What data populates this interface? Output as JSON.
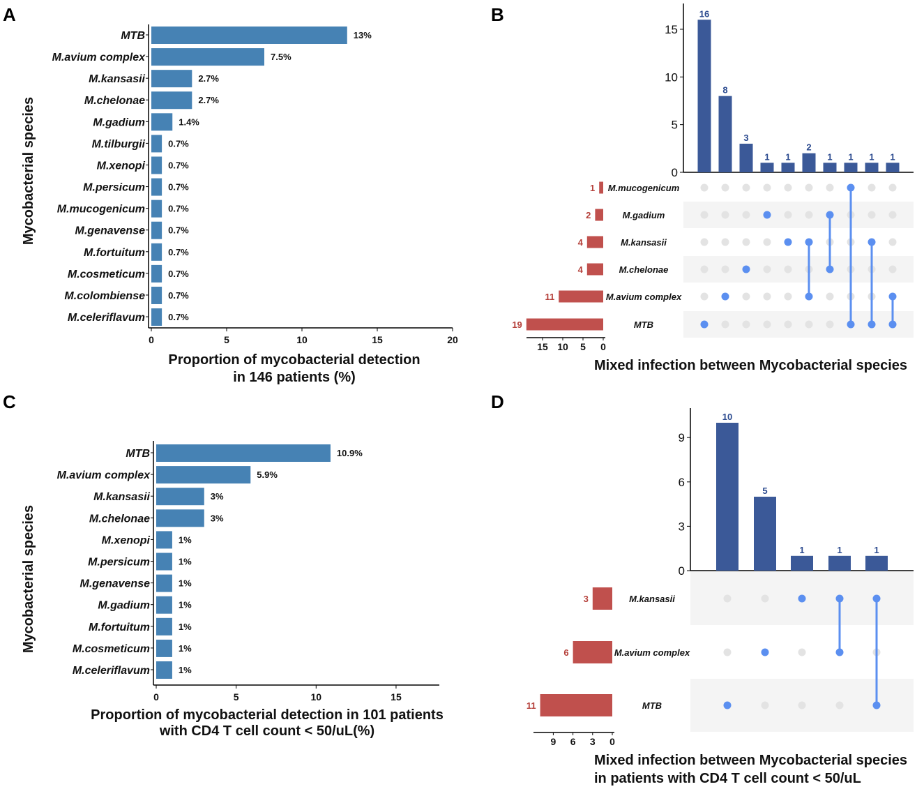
{
  "colors": {
    "bar": "#4682B4",
    "upset_bar": "#3B5998",
    "set_bar": "#C0504D",
    "dot_on": "#5B8FF0",
    "dot_off": "#E3E3E3",
    "band": "#F4F4F4"
  },
  "chart_data": [
    {
      "panel": "A",
      "type": "bar",
      "orientation": "horizontal",
      "categories": [
        "MTB",
        "M.avium complex",
        "M.kansasii",
        "M.chelonae",
        "M.gadium",
        "M.tilburgii",
        "M.xenopi",
        "M.persicum",
        "M.mucogenicum",
        "M.genavense",
        "M.fortuitum",
        "M.cosmeticum",
        "M.colombiense",
        "M.celeriflavum"
      ],
      "values": [
        13,
        7.5,
        2.7,
        2.7,
        1.4,
        0.7,
        0.7,
        0.7,
        0.7,
        0.7,
        0.7,
        0.7,
        0.7,
        0.7
      ],
      "labels": [
        "13%",
        "7.5%",
        "2.7%",
        "2.7%",
        "1.4%",
        "0.7%",
        "0.7%",
        "0.7%",
        "0.7%",
        "0.7%",
        "0.7%",
        "0.7%",
        "0.7%",
        "0.7%"
      ],
      "xticks": [
        "0",
        "5",
        "10",
        "15",
        "20"
      ],
      "xlim": [
        0,
        20
      ],
      "xlabel": [
        "Proportion of mycobacterial detection",
        "in 146 patients (%)"
      ],
      "ylabel": "Mycobacterial species"
    },
    {
      "panel": "B",
      "type": "upset",
      "intersection_sizes": [
        16,
        8,
        3,
        1,
        1,
        2,
        1,
        1,
        1,
        1
      ],
      "sets": [
        "M.mucogenicum",
        "M.gadium",
        "M.kansasii",
        "M.chelonae",
        "M.avium complex",
        "MTB"
      ],
      "set_sizes": [
        1,
        2,
        4,
        4,
        11,
        19
      ],
      "intersections": [
        [
          5
        ],
        [
          4
        ],
        [
          3
        ],
        [
          1
        ],
        [
          2
        ],
        [
          2,
          4
        ],
        [
          1,
          3
        ],
        [
          0,
          5
        ],
        [
          2,
          5
        ],
        [
          4,
          5
        ]
      ],
      "yticks": [
        "0",
        "5",
        "10",
        "15"
      ],
      "ylim": [
        0,
        17
      ],
      "set_ticks": [
        "15",
        "10",
        "5",
        "0"
      ],
      "xlabel": [
        "Mixed infection between Mycobacterial species"
      ]
    },
    {
      "panel": "C",
      "type": "bar",
      "orientation": "horizontal",
      "categories": [
        "MTB",
        "M.avium complex",
        "M.kansasii",
        "M.chelonae",
        "M.xenopi",
        "M.persicum",
        "M.genavense",
        "M.gadium",
        "M.fortuitum",
        "M.cosmeticum",
        "M.celeriflavum"
      ],
      "values": [
        10.9,
        5.9,
        3,
        3,
        1,
        1,
        1,
        1,
        1,
        1,
        1
      ],
      "labels": [
        "10.9%",
        "5.9%",
        "3%",
        "3%",
        "1%",
        "1%",
        "1%",
        "1%",
        "1%",
        "1%",
        "1%"
      ],
      "xticks": [
        "0",
        "5",
        "10",
        "15"
      ],
      "xlim": [
        0,
        17.7
      ],
      "xlabel": [
        "Proportion of mycobacterial detection in 101 patients",
        "with CD4 T cell count < 50/uL(%)"
      ],
      "ylabel": "Mycobacterial species"
    },
    {
      "panel": "D",
      "type": "upset",
      "intersection_sizes": [
        10,
        5,
        1,
        1,
        1
      ],
      "sets": [
        "M.kansasii",
        "M.avium complex",
        "MTB"
      ],
      "set_sizes": [
        3,
        6,
        11
      ],
      "intersections": [
        [
          2
        ],
        [
          1
        ],
        [
          0
        ],
        [
          0,
          1
        ],
        [
          0,
          2
        ]
      ],
      "yticks": [
        "0",
        "3",
        "6",
        "9"
      ],
      "ylim": [
        0,
        11
      ],
      "set_ticks": [
        "9",
        "6",
        "3",
        "0"
      ],
      "xlabel": [
        "Mixed infection between Mycobacterial species",
        "in patients with CD4 T cell count < 50/uL"
      ]
    }
  ]
}
